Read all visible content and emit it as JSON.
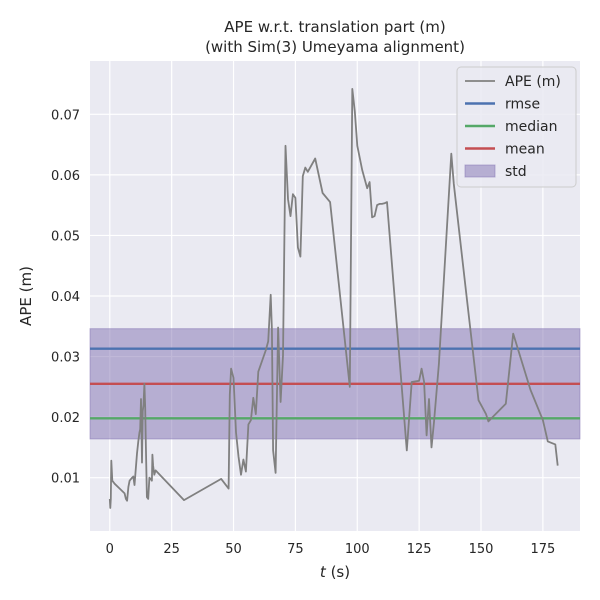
{
  "chart_data": {
    "type": "line",
    "title_line1": "APE w.r.t. translation part (m)",
    "title_line2": "(with Sim(3) Umeyama alignment)",
    "xlabel_var": "t",
    "xlabel_unit": " (s)",
    "ylabel": "APE (m)",
    "xlim": [
      -8,
      190
    ],
    "ylim": [
      0.0012,
      0.0788
    ],
    "xticks": [
      0,
      25,
      50,
      75,
      100,
      125,
      150,
      175
    ],
    "yticks": [
      0.01,
      0.02,
      0.03,
      0.04,
      0.05,
      0.06,
      0.07
    ],
    "grid": true,
    "legend_position": "top-right",
    "legend": [
      "APE (m)",
      "rmse",
      "median",
      "mean",
      "std"
    ],
    "colors": {
      "ape": "#808080",
      "rmse": "#4c72b0",
      "median": "#55a868",
      "mean": "#c44e52",
      "std": "#8172b2",
      "background": "#eaeaf2",
      "grid": "#ffffff"
    },
    "stats": {
      "rmse": 0.0313,
      "median": 0.0198,
      "mean": 0.0255,
      "std_low": 0.0164,
      "std_high": 0.0346
    },
    "series": [
      {
        "name": "APE (m)",
        "x": [
          0,
          0.2,
          0.4,
          0.6,
          1,
          2,
          4,
          6,
          6.5,
          7,
          7.5,
          8,
          9,
          9.5,
          10,
          11,
          11.5,
          12,
          12.3,
          12.6,
          13,
          13.3,
          13.6,
          14,
          14.3,
          14.6,
          15,
          15.5,
          16,
          16.5,
          17,
          17.2,
          17.5,
          18,
          18.5,
          30,
          45,
          48,
          48.5,
          49,
          50,
          51,
          52,
          53,
          54,
          55,
          56,
          57,
          58,
          59,
          60,
          63,
          64,
          65,
          65.5,
          66,
          67,
          68,
          69,
          70,
          71,
          72,
          73,
          74,
          75,
          76,
          77,
          78,
          79,
          80,
          83,
          86,
          89,
          97,
          98,
          99,
          100,
          102,
          104,
          105,
          106,
          107,
          108,
          109,
          110,
          111,
          112,
          120,
          122,
          125,
          126,
          127,
          128,
          129,
          130,
          131,
          133,
          138,
          139,
          144,
          149,
          152,
          153,
          160,
          163,
          170,
          175,
          177,
          180,
          181
        ],
        "y": [
          0.0065,
          0.005,
          0.0065,
          0.0128,
          0.0095,
          0.009,
          0.0082,
          0.0074,
          0.0065,
          0.0062,
          0.0085,
          0.0095,
          0.01,
          0.0102,
          0.0088,
          0.014,
          0.016,
          0.0175,
          0.018,
          0.023,
          0.0125,
          0.021,
          0.022,
          0.0255,
          0.0215,
          0.015,
          0.0068,
          0.0065,
          0.01,
          0.0098,
          0.0095,
          0.0138,
          0.012,
          0.0105,
          0.0112,
          0.0063,
          0.0098,
          0.0082,
          0.0237,
          0.028,
          0.0265,
          0.0175,
          0.0135,
          0.0105,
          0.013,
          0.011,
          0.0188,
          0.0195,
          0.0232,
          0.0205,
          0.0275,
          0.031,
          0.0325,
          0.0402,
          0.0345,
          0.0145,
          0.0108,
          0.0348,
          0.0225,
          0.0302,
          0.0648,
          0.056,
          0.0532,
          0.0568,
          0.0562,
          0.048,
          0.0465,
          0.0598,
          0.0612,
          0.0605,
          0.0627,
          0.057,
          0.0555,
          0.025,
          0.0742,
          0.0705,
          0.0648,
          0.0608,
          0.0578,
          0.0588,
          0.053,
          0.0532,
          0.055,
          0.0552,
          0.0552,
          0.0553,
          0.0555,
          0.0145,
          0.0258,
          0.026,
          0.028,
          0.0258,
          0.017,
          0.023,
          0.015,
          0.0192,
          0.0288,
          0.0635,
          0.0585,
          0.0405,
          0.0228,
          0.0205,
          0.0193,
          0.0222,
          0.0338,
          0.0245,
          0.0195,
          0.016,
          0.0155,
          0.012
        ]
      }
    ]
  }
}
